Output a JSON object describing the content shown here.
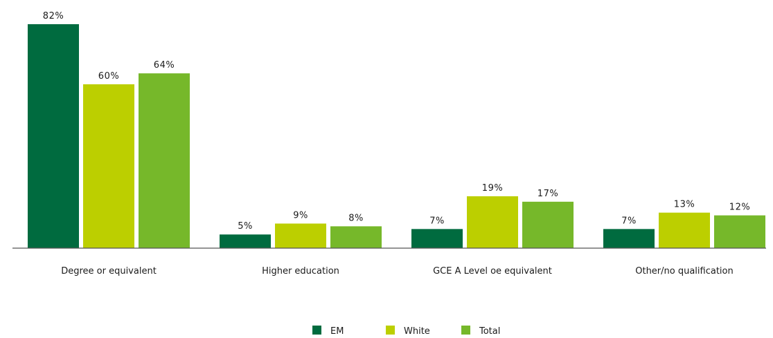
{
  "chart_data": {
    "type": "bar",
    "categories": [
      "Degree or equivalent",
      "Higher education",
      "GCE A Level oe equivalent",
      "Other/no qualification"
    ],
    "series": [
      {
        "name": "EM",
        "values": [
          82,
          5,
          7,
          7
        ],
        "labels": [
          "82%",
          "5%",
          "7%",
          "7%"
        ],
        "color": "#006b3f"
      },
      {
        "name": "White",
        "values": [
          60,
          9,
          19,
          13
        ],
        "labels": [
          "60%",
          "9%",
          "19%",
          "13%"
        ],
        "color": "#bccf00"
      },
      {
        "name": "Total",
        "values": [
          64,
          8,
          17,
          12
        ],
        "labels": [
          "64%",
          "8%",
          "17%",
          "12%"
        ],
        "color": "#76b82a"
      }
    ],
    "ylim": [
      0,
      82
    ],
    "grid": false,
    "legend_position": "bottom-center"
  }
}
